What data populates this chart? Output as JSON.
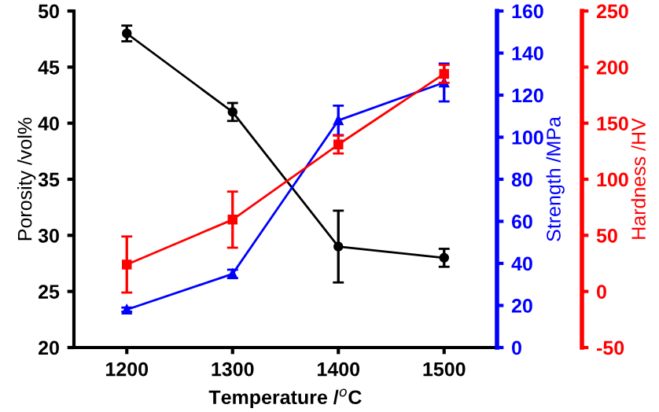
{
  "chart_data": {
    "type": "line",
    "x": [
      1200,
      1300,
      1400,
      1500
    ],
    "xlabel": "Temperature /$^{o}$C",
    "ylabel": "Porosity /vol%",
    "y2label": "Strength /MPa",
    "y3label": "Hardness /HV",
    "xlim": [
      1150,
      1550
    ],
    "xticks": [
      1200,
      1300,
      1400,
      1500
    ],
    "ylim": [
      20,
      50
    ],
    "yticks": [
      20,
      25,
      30,
      35,
      40,
      45,
      50
    ],
    "y2lim": [
      0,
      160
    ],
    "y2ticks": [
      0,
      20,
      40,
      60,
      80,
      100,
      120,
      140,
      160
    ],
    "y3lim": [
      -50,
      250
    ],
    "y3ticks": [
      -50,
      0,
      50,
      100,
      150,
      200,
      250
    ],
    "grid": false,
    "legend": false,
    "line_style": "solid",
    "series": [
      {
        "color": "#000000",
        "marker": "circle",
        "values": [
          48,
          41,
          29,
          28
        ],
        "errors": [
          0.7,
          0.8,
          3.2,
          0.8
        ]
      },
      {
        "color": "#0000ff",
        "marker": "triangle",
        "axis": "y2",
        "values": [
          18,
          35,
          108,
          126
        ],
        "errors": [
          1,
          2,
          7,
          9
        ]
      },
      {
        "color": "#ff0000",
        "marker": "square",
        "axis": "y3",
        "values": [
          24,
          64,
          131,
          194
        ],
        "errors": [
          25,
          25,
          8,
          8
        ]
      }
    ]
  }
}
